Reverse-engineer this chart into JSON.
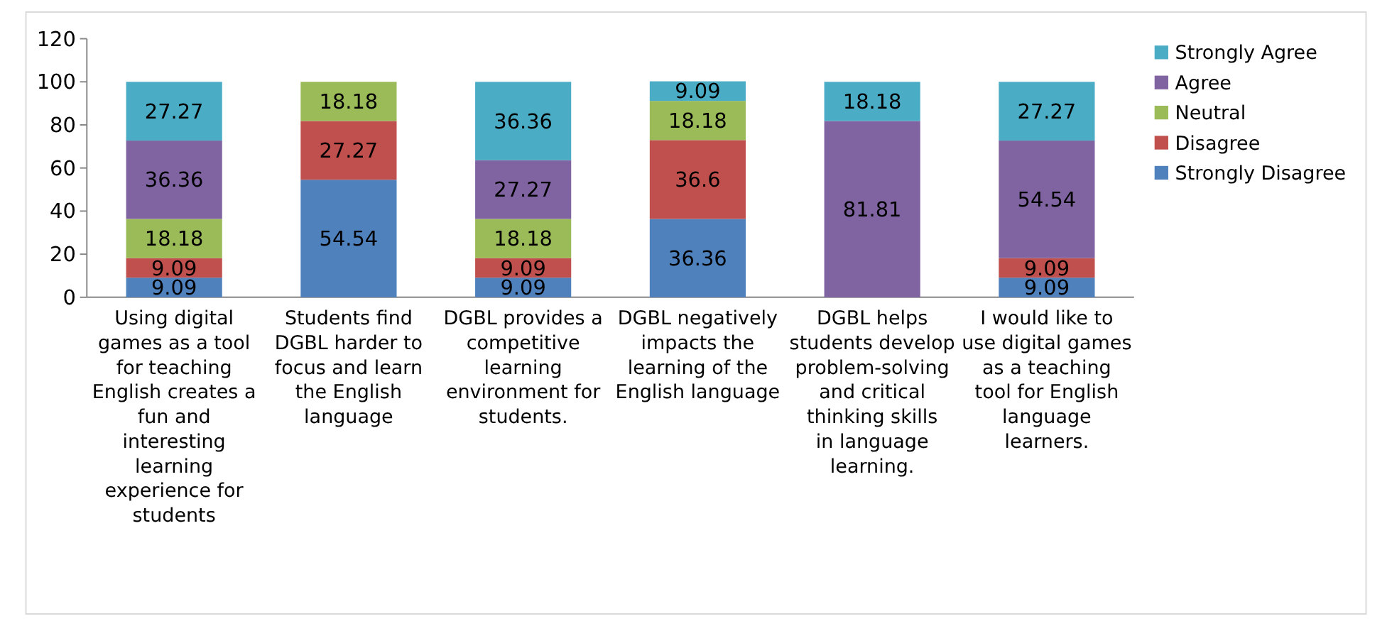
{
  "chart_data": {
    "type": "bar",
    "stacked": true,
    "data_labels": true,
    "legend": "right",
    "ylim": [
      0,
      120
    ],
    "yticks": [
      0,
      20,
      40,
      60,
      80,
      100,
      120
    ],
    "categories": [
      "Using digital games as a tool for teaching English creates a fun and interesting learning experience for students",
      "Students find DGBL harder to focus and learn the English language",
      "DGBL provides a competitive learning environment for students.",
      "DGBL negatively impacts the learning of the English language",
      "DGBL helps students develop problem-solving and critical thinking skills in language learning.",
      "I would like to use digital games as a teaching tool for English language learners."
    ],
    "series": [
      {
        "name": "Strongly Disagree",
        "color": "#4f81bd",
        "values": [
          9.09,
          54.54,
          9.09,
          36.36,
          null,
          9.09
        ]
      },
      {
        "name": "Disagree",
        "color": "#c0504d",
        "values": [
          9.09,
          27.27,
          9.09,
          36.6,
          null,
          9.09
        ]
      },
      {
        "name": "Neutral",
        "color": "#9bbb59",
        "values": [
          18.18,
          18.18,
          18.18,
          18.18,
          null,
          null
        ]
      },
      {
        "name": "Agree",
        "color": "#8064a2",
        "values": [
          36.36,
          null,
          27.27,
          null,
          81.81,
          54.54
        ]
      },
      {
        "name": "Strongly Agree",
        "color": "#4bacc6",
        "values": [
          27.27,
          null,
          36.36,
          9.09,
          18.18,
          27.27
        ]
      }
    ]
  }
}
